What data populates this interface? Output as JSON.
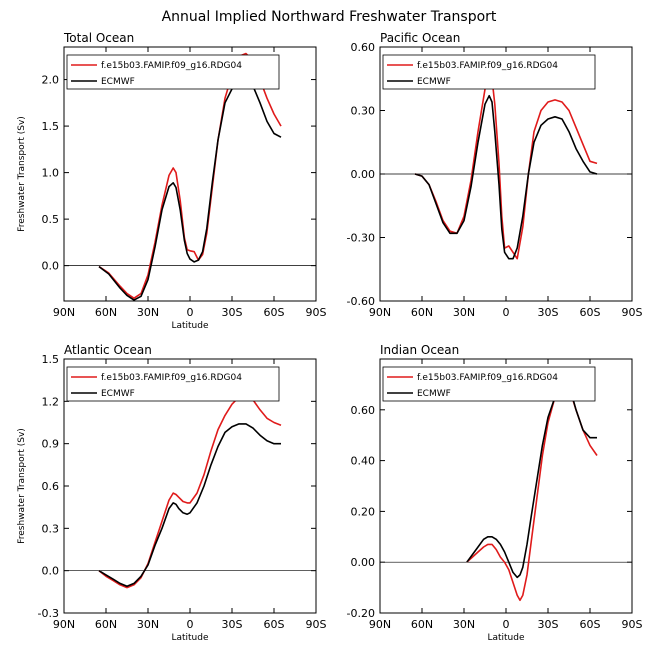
{
  "figure_title": "Annual Implied Northward Freshwater Transport",
  "colors": {
    "model": "#e01b1b",
    "obs": "#000000"
  },
  "chart_data": [
    {
      "type": "line",
      "title": "Total Ocean",
      "xlabel": "Latitude",
      "ylabel": "Freshwater Transport (Sv)",
      "xlim": [
        -90,
        90
      ],
      "xtick_values": [
        -90,
        -60,
        -30,
        0,
        30,
        60,
        90
      ],
      "xtick_labels": [
        "90N",
        "60N",
        "30N",
        "0",
        "30S",
        "60S",
        "90S"
      ],
      "ylim": [
        -0.38,
        2.35
      ],
      "ytick_values": [
        0,
        0.5,
        1.0,
        1.5,
        2.0
      ],
      "ytick_labels": [
        "0.0",
        "0.5",
        "1.0",
        "1.5",
        "2.0"
      ],
      "legend": [
        "f.e15b03.FAMIP.f09_g16.RDG04",
        "ECMWF"
      ],
      "series": [
        {
          "name": "f.e15b03.FAMIP.f09_g16.RDG04",
          "color": "#e01b1b",
          "x": [
            -65,
            -58,
            -50,
            -45,
            -40,
            -35,
            -30,
            -25,
            -20,
            -15,
            -12,
            -10,
            -7,
            -4,
            -2,
            0,
            3,
            6,
            9,
            12,
            16,
            20,
            25,
            30,
            35,
            40,
            45,
            50,
            55,
            60,
            65
          ],
          "y": [
            -0.01,
            -0.08,
            -0.22,
            -0.3,
            -0.35,
            -0.3,
            -0.1,
            0.25,
            0.65,
            0.97,
            1.05,
            1.0,
            0.7,
            0.3,
            0.17,
            0.16,
            0.15,
            0.06,
            0.12,
            0.35,
            0.85,
            1.35,
            1.8,
            2.05,
            2.25,
            2.28,
            2.2,
            2.0,
            1.8,
            1.63,
            1.5
          ]
        },
        {
          "name": "ECMWF",
          "color": "#000000",
          "x": [
            -65,
            -58,
            -50,
            -45,
            -40,
            -35,
            -30,
            -25,
            -20,
            -15,
            -12,
            -10,
            -7,
            -4,
            -2,
            0,
            3,
            6,
            9,
            12,
            16,
            20,
            25,
            30,
            35,
            40,
            45,
            50,
            55,
            60,
            65
          ],
          "y": [
            -0.01,
            -0.09,
            -0.24,
            -0.32,
            -0.37,
            -0.33,
            -0.15,
            0.2,
            0.6,
            0.85,
            0.89,
            0.84,
            0.6,
            0.27,
            0.13,
            0.07,
            0.04,
            0.06,
            0.15,
            0.4,
            0.9,
            1.35,
            1.75,
            1.9,
            1.98,
            2.01,
            1.93,
            1.75,
            1.55,
            1.42,
            1.38
          ]
        }
      ]
    },
    {
      "type": "line",
      "title": "Pacific Ocean",
      "xlabel": "",
      "ylabel": "",
      "xlim": [
        -90,
        90
      ],
      "xtick_values": [
        -90,
        -60,
        -30,
        0,
        30,
        60,
        90
      ],
      "xtick_labels": [
        "90N",
        "60N",
        "30N",
        "0",
        "30S",
        "60S",
        "90S"
      ],
      "ylim": [
        -0.6,
        0.6
      ],
      "ytick_values": [
        -0.6,
        -0.3,
        0,
        0.3,
        0.6
      ],
      "ytick_labels": [
        "-0.60",
        "-0.30",
        "0.00",
        "0.30",
        "0.60"
      ],
      "legend": [
        "f.e15b03.FAMIP.f09_g16.RDG04",
        "ECMWF"
      ],
      "series": [
        {
          "name": "f.e15b03.FAMIP.f09_g16.RDG04",
          "color": "#e01b1b",
          "x": [
            -65,
            -60,
            -55,
            -50,
            -45,
            -40,
            -35,
            -30,
            -25,
            -20,
            -15,
            -12,
            -10,
            -8,
            -5,
            -3,
            -1,
            2,
            5,
            8,
            12,
            16,
            20,
            25,
            30,
            35,
            40,
            45,
            50,
            55,
            60,
            65
          ],
          "y": [
            0.0,
            -0.01,
            -0.05,
            -0.13,
            -0.22,
            -0.27,
            -0.28,
            -0.2,
            -0.03,
            0.2,
            0.4,
            0.47,
            0.45,
            0.33,
            0.05,
            -0.2,
            -0.35,
            -0.34,
            -0.37,
            -0.4,
            -0.25,
            0.0,
            0.2,
            0.3,
            0.34,
            0.35,
            0.34,
            0.3,
            0.22,
            0.14,
            0.06,
            0.05
          ]
        },
        {
          "name": "ECMWF",
          "color": "#000000",
          "x": [
            -65,
            -60,
            -55,
            -50,
            -45,
            -40,
            -35,
            -30,
            -25,
            -20,
            -15,
            -12,
            -10,
            -8,
            -5,
            -3,
            -1,
            2,
            5,
            8,
            12,
            16,
            20,
            25,
            30,
            35,
            40,
            45,
            50,
            55,
            60,
            65
          ],
          "y": [
            0.0,
            -0.01,
            -0.05,
            -0.14,
            -0.23,
            -0.28,
            -0.28,
            -0.22,
            -0.06,
            0.15,
            0.33,
            0.37,
            0.34,
            0.2,
            -0.05,
            -0.26,
            -0.37,
            -0.4,
            -0.4,
            -0.35,
            -0.2,
            0.0,
            0.15,
            0.23,
            0.26,
            0.27,
            0.26,
            0.2,
            0.12,
            0.06,
            0.01,
            0.0
          ]
        }
      ]
    },
    {
      "type": "line",
      "title": "Atlantic Ocean",
      "xlabel": "Latitude",
      "ylabel": "Freshwater Transport (Sv)",
      "xlim": [
        -90,
        90
      ],
      "xtick_values": [
        -90,
        -60,
        -30,
        0,
        30,
        60,
        90
      ],
      "xtick_labels": [
        "90N",
        "60N",
        "30N",
        "0",
        "30S",
        "60S",
        "90S"
      ],
      "ylim": [
        -0.3,
        1.5
      ],
      "ytick_values": [
        -0.3,
        0,
        0.3,
        0.6,
        0.9,
        1.2,
        1.5
      ],
      "ytick_labels": [
        "-0.3",
        "0.0",
        "0.3",
        "0.6",
        "0.9",
        "1.2",
        "1.5"
      ],
      "legend": [
        "f.e15b03.FAMIP.f09_g16.RDG04",
        "ECMWF"
      ],
      "series": [
        {
          "name": "f.e15b03.FAMIP.f09_g16.RDG04",
          "color": "#e01b1b",
          "x": [
            -65,
            -60,
            -55,
            -50,
            -45,
            -40,
            -35,
            -30,
            -25,
            -20,
            -15,
            -12,
            -10,
            -8,
            -5,
            -2,
            0,
            5,
            10,
            15,
            20,
            25,
            30,
            35,
            40,
            45,
            50,
            55,
            60,
            65
          ],
          "y": [
            0.0,
            -0.04,
            -0.07,
            -0.1,
            -0.12,
            -0.1,
            -0.05,
            0.05,
            0.2,
            0.35,
            0.5,
            0.55,
            0.54,
            0.52,
            0.49,
            0.48,
            0.48,
            0.55,
            0.68,
            0.85,
            1.0,
            1.1,
            1.18,
            1.23,
            1.24,
            1.21,
            1.14,
            1.08,
            1.05,
            1.03
          ]
        },
        {
          "name": "ECMWF",
          "color": "#000000",
          "x": [
            -65,
            -60,
            -55,
            -50,
            -45,
            -40,
            -35,
            -30,
            -25,
            -20,
            -15,
            -12,
            -10,
            -8,
            -5,
            -2,
            0,
            5,
            10,
            15,
            20,
            25,
            30,
            35,
            40,
            45,
            50,
            55,
            60,
            65
          ],
          "y": [
            0.0,
            -0.03,
            -0.06,
            -0.09,
            -0.11,
            -0.09,
            -0.04,
            0.04,
            0.18,
            0.3,
            0.44,
            0.48,
            0.47,
            0.44,
            0.41,
            0.4,
            0.41,
            0.48,
            0.6,
            0.75,
            0.88,
            0.98,
            1.02,
            1.04,
            1.04,
            1.01,
            0.96,
            0.92,
            0.9,
            0.9
          ]
        }
      ]
    },
    {
      "type": "line",
      "title": "Indian Ocean",
      "xlabel": "Latitude",
      "ylabel": "",
      "xlim": [
        -90,
        90
      ],
      "xtick_values": [
        -90,
        -60,
        -30,
        0,
        30,
        60,
        90
      ],
      "xtick_labels": [
        "90N",
        "60N",
        "30N",
        "0",
        "30S",
        "60S",
        "90S"
      ],
      "ylim": [
        -0.2,
        0.8
      ],
      "ytick_values": [
        -0.2,
        0,
        0.2,
        0.4,
        0.6
      ],
      "ytick_labels": [
        "-0.20",
        "0.00",
        "0.20",
        "0.40",
        "0.60"
      ],
      "legend": [
        "f.e15b03.FAMIP.f09_g16.RDG04",
        "ECMWF"
      ],
      "series": [
        {
          "name": "f.e15b03.FAMIP.f09_g16.RDG04",
          "color": "#e01b1b",
          "x": [
            -28,
            -24,
            -20,
            -16,
            -13,
            -10,
            -7,
            -4,
            -1,
            2,
            5,
            8,
            10,
            12,
            15,
            18,
            22,
            26,
            30,
            35,
            40,
            43,
            46,
            50,
            55,
            60,
            65
          ],
          "y": [
            0.0,
            0.02,
            0.04,
            0.06,
            0.07,
            0.07,
            0.05,
            0.02,
            0.0,
            -0.03,
            -0.08,
            -0.13,
            -0.15,
            -0.13,
            -0.05,
            0.08,
            0.25,
            0.42,
            0.55,
            0.65,
            0.69,
            0.69,
            0.67,
            0.6,
            0.52,
            0.46,
            0.42
          ]
        },
        {
          "name": "ECMWF",
          "color": "#000000",
          "x": [
            -28,
            -24,
            -20,
            -16,
            -13,
            -10,
            -7,
            -4,
            -1,
            2,
            5,
            8,
            10,
            12,
            15,
            18,
            22,
            26,
            30,
            35,
            40,
            43,
            46,
            50,
            55,
            60,
            65
          ],
          "y": [
            0.0,
            0.03,
            0.06,
            0.09,
            0.1,
            0.1,
            0.09,
            0.07,
            0.04,
            0.0,
            -0.04,
            -0.06,
            -0.05,
            -0.02,
            0.07,
            0.18,
            0.32,
            0.46,
            0.57,
            0.65,
            0.7,
            0.7,
            0.68,
            0.6,
            0.52,
            0.49,
            0.49
          ]
        }
      ]
    }
  ]
}
